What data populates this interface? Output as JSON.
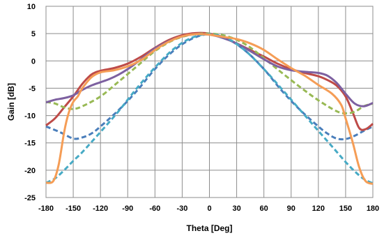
{
  "chart_data": {
    "type": "line",
    "xlabel": "Theta [Deg]",
    "ylabel": "Gain [dB]",
    "xlim": [
      -180,
      180
    ],
    "ylim": [
      -25,
      10
    ],
    "xticks": [
      -180,
      -150,
      -120,
      -90,
      -60,
      -30,
      0,
      30,
      60,
      90,
      120,
      150,
      180
    ],
    "yticks": [
      -25,
      -20,
      -15,
      -10,
      -5,
      0,
      5,
      10
    ],
    "grid": true,
    "series": [
      {
        "color": "#4a7ebb",
        "style": "dashed",
        "x": [
          -180,
          -165,
          -150,
          -140,
          -130,
          -120,
          -100,
          -80,
          -60,
          -40,
          -20,
          0,
          20,
          40,
          60,
          80,
          100,
          120,
          130,
          140,
          150,
          160,
          170,
          180
        ],
        "y": [
          -12,
          -13,
          -14.2,
          -14,
          -13.3,
          -12,
          -9,
          -5.5,
          -1.5,
          1.8,
          4,
          4.9,
          4,
          1.8,
          -1.5,
          -5.5,
          -9,
          -12,
          -13.3,
          -14.2,
          -14.3,
          -13.7,
          -12.8,
          -12
        ]
      },
      {
        "color": "#be4b48",
        "style": "solid",
        "x": [
          -180,
          -170,
          -160,
          -150,
          -140,
          -130,
          -120,
          -105,
          -90,
          -75,
          -60,
          -45,
          -30,
          -15,
          0,
          15,
          30,
          45,
          60,
          75,
          90,
          105,
          120,
          130,
          140,
          150,
          158,
          165,
          172,
          180
        ],
        "y": [
          -11.8,
          -10.5,
          -8.5,
          -6.5,
          -4.2,
          -2.5,
          -1.8,
          -1.3,
          -0.5,
          0.8,
          2.4,
          3.8,
          4.7,
          5.1,
          5,
          4.3,
          3.2,
          2,
          0.8,
          -0.5,
          -1.5,
          -2.2,
          -2.8,
          -3.5,
          -4.5,
          -6.5,
          -9.5,
          -12.3,
          -12.5,
          -11.5
        ]
      },
      {
        "color": "#98b954",
        "style": "dashed",
        "x": [
          -180,
          -170,
          -160,
          -150,
          -140,
          -120,
          -100,
          -80,
          -60,
          -40,
          -20,
          0,
          20,
          40,
          60,
          80,
          100,
          120,
          140,
          150,
          160,
          170,
          180
        ],
        "y": [
          -7.5,
          -7.8,
          -8.5,
          -8.8,
          -8.3,
          -6.5,
          -3.8,
          -1,
          1.8,
          3.8,
          4.8,
          5,
          4.5,
          3,
          0.5,
          -2.2,
          -4.8,
          -7.2,
          -9.2,
          -9.6,
          -9.3,
          -8.3,
          -7.8
        ]
      },
      {
        "color": "#7d60a0",
        "style": "solid",
        "x": [
          -180,
          -170,
          -160,
          -150,
          -140,
          -130,
          -120,
          -110,
          -100,
          -90,
          -80,
          -70,
          -60,
          -45,
          -30,
          -15,
          0,
          15,
          30,
          45,
          60,
          75,
          90,
          105,
          120,
          130,
          140,
          150,
          160,
          170,
          180
        ],
        "y": [
          -7.6,
          -7.1,
          -6.8,
          -6.3,
          -5.3,
          -4.5,
          -3.9,
          -3.3,
          -2.5,
          -1.5,
          -0.3,
          1,
          2.3,
          3.6,
          4.5,
          4.9,
          4.8,
          4.2,
          3.2,
          1.8,
          0.3,
          -1,
          -1.7,
          -2,
          -2.2,
          -2.7,
          -4,
          -6,
          -7.8,
          -8.3,
          -7.7
        ]
      },
      {
        "color": "#46aac5",
        "style": "dashed",
        "x": [
          -180,
          -170,
          -160,
          -150,
          -140,
          -120,
          -100,
          -80,
          -60,
          -40,
          -20,
          0,
          20,
          40,
          60,
          80,
          100,
          120,
          140,
          150,
          160,
          170,
          180
        ],
        "y": [
          -22.3,
          -21.5,
          -20,
          -18.3,
          -16.7,
          -13,
          -9.2,
          -5,
          -1.2,
          2.1,
          4.2,
          4.9,
          4.1,
          1.8,
          -1.5,
          -5.2,
          -9,
          -12.8,
          -16.6,
          -18.5,
          -20.2,
          -21.6,
          -22.4
        ]
      },
      {
        "color": "#f59d56",
        "style": "solid",
        "x": [
          -180,
          -172,
          -166,
          -160,
          -155,
          -150,
          -145,
          -140,
          -130,
          -120,
          -105,
          -90,
          -75,
          -60,
          -45,
          -30,
          -15,
          0,
          15,
          30,
          45,
          60,
          75,
          90,
          105,
          120,
          135,
          145,
          150,
          158,
          165,
          172,
          180
        ],
        "y": [
          -22.3,
          -22,
          -19,
          -13,
          -9.5,
          -7.5,
          -6.5,
          -5,
          -3,
          -2.1,
          -1.7,
          -1,
          0.2,
          2,
          3.5,
          4.5,
          4.9,
          4.8,
          4.4,
          4,
          3.2,
          2,
          0.3,
          -1.3,
          -2.7,
          -4.4,
          -6,
          -8,
          -10.5,
          -15,
          -19.5,
          -22,
          -22.5
        ]
      }
    ]
  }
}
